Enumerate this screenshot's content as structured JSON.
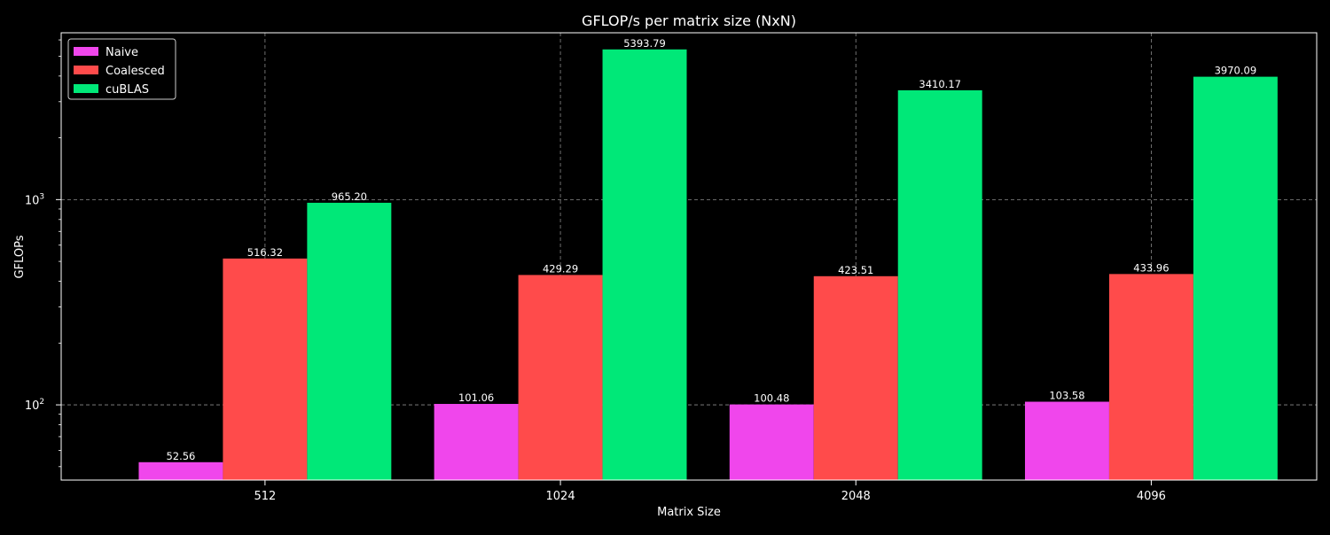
{
  "chart_data": {
    "type": "bar",
    "title": "GFLOP/s per matrix size (NxN)",
    "xlabel": "Matrix Size",
    "ylabel": "GFLOPs",
    "y_scale": "log",
    "ylim": [
      43,
      6500
    ],
    "y_major_ticks": [
      {
        "value": 100,
        "base": "10",
        "exp": "2"
      },
      {
        "value": 1000,
        "base": "10",
        "exp": "3"
      }
    ],
    "categories": [
      "512",
      "1024",
      "2048",
      "4096"
    ],
    "series": [
      {
        "name": "Naive",
        "color": "#f046ec",
        "values": [
          52.56,
          101.06,
          100.48,
          103.58
        ],
        "labels": [
          "52.56",
          "101.06",
          "100.48",
          "103.58"
        ]
      },
      {
        "name": "Coalesced",
        "color": "#ff4b4b",
        "values": [
          516.32,
          429.29,
          423.51,
          433.96
        ],
        "labels": [
          "516.32",
          "429.29",
          "423.51",
          "433.96"
        ]
      },
      {
        "name": "cuBLAS",
        "color": "#00e878",
        "values": [
          965.2,
          5393.79,
          3410.17,
          3970.09
        ],
        "labels": [
          "965.20",
          "5393.79",
          "3410.17",
          "3970.09"
        ]
      }
    ],
    "grid": true,
    "legend_position": "top-left",
    "background": "#000000",
    "foreground": "#ffffff"
  }
}
